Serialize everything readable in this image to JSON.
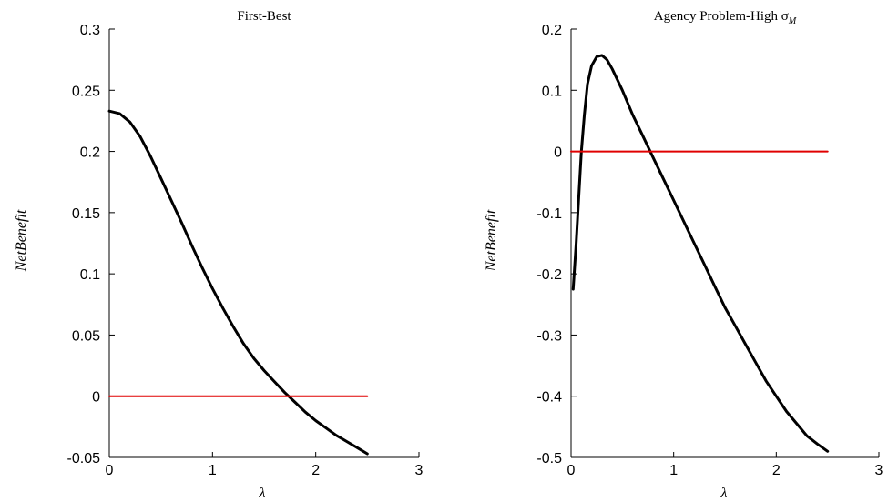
{
  "chart_data": [
    {
      "type": "line",
      "title": "First-Best",
      "xlabel": "λ",
      "ylabel": "NetBenefit",
      "xlim": [
        0,
        3
      ],
      "ylim": [
        -0.05,
        0.3
      ],
      "xticks": [
        "0",
        "1",
        "2",
        "3"
      ],
      "yticks": [
        "-0.05",
        "0",
        "0.05",
        "0.1",
        "0.15",
        "0.2",
        "0.25",
        "0.3"
      ],
      "grid": false,
      "series": [
        {
          "color": "#000000",
          "x": [
            0,
            0.1,
            0.2,
            0.3,
            0.4,
            0.5,
            0.6,
            0.7,
            0.8,
            0.9,
            1.0,
            1.1,
            1.2,
            1.3,
            1.4,
            1.5,
            1.6,
            1.7,
            1.8,
            1.9,
            2.0,
            2.1,
            2.2,
            2.3,
            2.4,
            2.5
          ],
          "y": [
            0.233,
            0.231,
            0.224,
            0.212,
            0.196,
            0.178,
            0.16,
            0.142,
            0.123,
            0.105,
            0.088,
            0.072,
            0.057,
            0.043,
            0.031,
            0.021,
            0.012,
            0.003,
            -0.005,
            -0.013,
            -0.02,
            -0.026,
            -0.032,
            -0.037,
            -0.042,
            -0.047
          ]
        },
        {
          "color": "#e00000",
          "x": [
            0,
            2.5
          ],
          "y": [
            0,
            0
          ]
        }
      ]
    },
    {
      "type": "line",
      "title": "Agency Problem-High σ",
      "title_subscript": "M",
      "xlabel": "λ",
      "ylabel": "NetBenefit",
      "xlim": [
        0,
        3
      ],
      "ylim": [
        -0.5,
        0.2
      ],
      "xticks": [
        "0",
        "1",
        "2",
        "3"
      ],
      "yticks": [
        "-0.5",
        "-0.4",
        "-0.3",
        "-0.2",
        "-0.1",
        "0",
        "0.1",
        "0.2"
      ],
      "grid": false,
      "series": [
        {
          "color": "#000000",
          "x": [
            0.02,
            0.05,
            0.08,
            0.1,
            0.13,
            0.16,
            0.2,
            0.25,
            0.3,
            0.35,
            0.4,
            0.5,
            0.6,
            0.7,
            0.8,
            0.9,
            1.0,
            1.1,
            1.2,
            1.3,
            1.4,
            1.5,
            1.6,
            1.7,
            1.8,
            1.9,
            2.0,
            2.1,
            2.2,
            2.3,
            2.4,
            2.5
          ],
          "y": [
            -0.225,
            -0.15,
            -0.06,
            0.0,
            0.06,
            0.11,
            0.14,
            0.155,
            0.157,
            0.15,
            0.135,
            0.1,
            0.06,
            0.025,
            -0.01,
            -0.045,
            -0.08,
            -0.115,
            -0.15,
            -0.185,
            -0.22,
            -0.255,
            -0.285,
            -0.315,
            -0.345,
            -0.375,
            -0.4,
            -0.425,
            -0.445,
            -0.465,
            -0.478,
            -0.49
          ]
        },
        {
          "color": "#e00000",
          "x": [
            0,
            2.5
          ],
          "y": [
            0,
            0
          ]
        }
      ]
    }
  ]
}
